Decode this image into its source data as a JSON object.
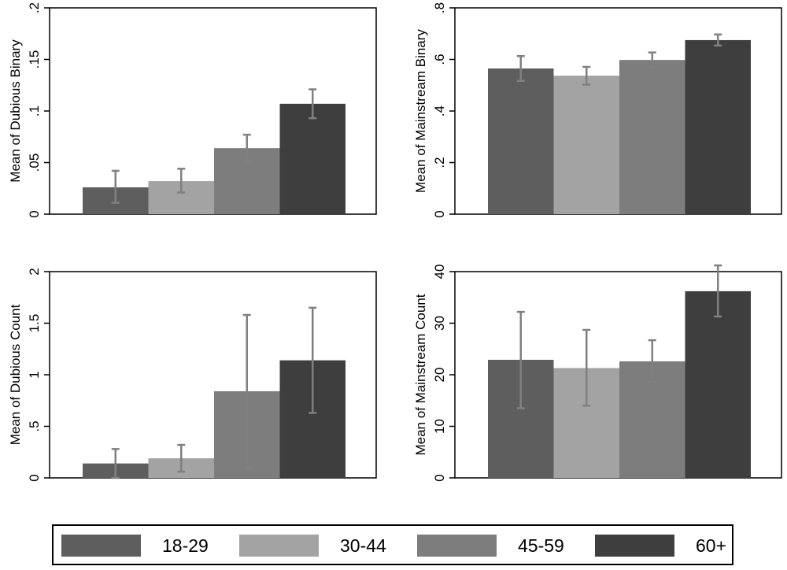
{
  "colors": {
    "18-29": "#5e5e5e",
    "30-44": "#a3a3a3",
    "45-59": "#7d7d7d",
    "60+": "#3e3e3e",
    "error_bar": "#808080"
  },
  "legend": {
    "items": [
      "18-29",
      "30-44",
      "45-59",
      "60+"
    ]
  },
  "chart_data": [
    {
      "type": "bar",
      "ylabel": "Mean of Dubious Binary",
      "ylim": [
        0,
        0.2
      ],
      "yticks": [
        0,
        0.05,
        0.1,
        0.15,
        0.2
      ],
      "yticklabels": [
        "0",
        ".05",
        ".1",
        ".15",
        ".2"
      ],
      "categories": [
        "18-29",
        "30-44",
        "45-59",
        "60+"
      ],
      "values": [
        0.026,
        0.032,
        0.064,
        0.107
      ],
      "ci_low": [
        0.011,
        0.021,
        0.051,
        0.093
      ],
      "ci_high": [
        0.042,
        0.044,
        0.077,
        0.121
      ]
    },
    {
      "type": "bar",
      "ylabel": "Mean of Mainstream Binary",
      "ylim": [
        0,
        0.8
      ],
      "yticks": [
        0,
        0.2,
        0.4,
        0.6,
        0.8
      ],
      "yticklabels": [
        "0",
        ".2",
        ".4",
        ".6",
        ".8"
      ],
      "categories": [
        "18-29",
        "30-44",
        "45-59",
        "60+"
      ],
      "values": [
        0.565,
        0.537,
        0.598,
        0.675
      ],
      "ci_low": [
        0.517,
        0.502,
        0.571,
        0.654
      ],
      "ci_high": [
        0.613,
        0.571,
        0.627,
        0.697
      ]
    },
    {
      "type": "bar",
      "ylabel": "Mean of Dubious Count",
      "ylim": [
        0,
        2
      ],
      "yticks": [
        0,
        0.5,
        1,
        1.5,
        2
      ],
      "yticklabels": [
        "0",
        ".5",
        "1",
        "1.5",
        "2"
      ],
      "categories": [
        "18-29",
        "30-44",
        "45-59",
        "60+"
      ],
      "values": [
        0.14,
        0.19,
        0.84,
        1.14
      ],
      "ci_low": [
        0.0,
        0.06,
        0.09,
        0.63
      ],
      "ci_high": [
        0.28,
        0.32,
        1.58,
        1.65
      ]
    },
    {
      "type": "bar",
      "ylabel": "Mean of Mainstream Count",
      "ylim": [
        0,
        40
      ],
      "yticks": [
        0,
        10,
        20,
        30,
        40
      ],
      "yticklabels": [
        "0",
        "10",
        "20",
        "30",
        "40"
      ],
      "categories": [
        "18-29",
        "30-44",
        "45-59",
        "60+"
      ],
      "values": [
        22.9,
        21.3,
        22.6,
        36.2
      ],
      "ci_low": [
        13.5,
        14.0,
        18.6,
        31.3
      ],
      "ci_high": [
        32.2,
        28.7,
        26.7,
        41.2
      ]
    }
  ]
}
